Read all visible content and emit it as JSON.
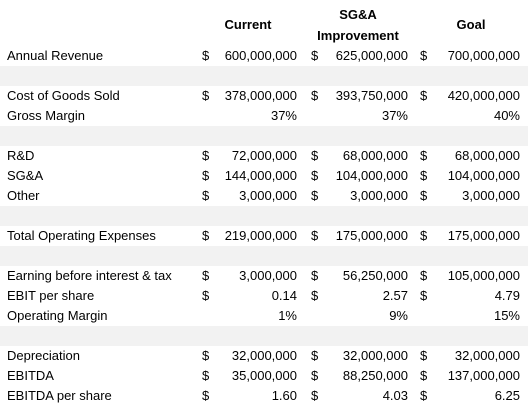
{
  "header": [
    "Current",
    "SG&A Improvement",
    "Goal"
  ],
  "groups": [
    [
      {
        "label": "Annual Revenue",
        "cells": [
          {
            "currency": "$",
            "value": "600,000,000"
          },
          {
            "currency": "$",
            "value": "625,000,000"
          },
          {
            "currency": "$",
            "value": "700,000,000"
          }
        ]
      }
    ],
    [
      {
        "label": "Cost of Goods Sold",
        "cells": [
          {
            "currency": "$",
            "value": "378,000,000"
          },
          {
            "currency": "$",
            "value": "393,750,000"
          },
          {
            "currency": "$",
            "value": "420,000,000"
          }
        ]
      },
      {
        "label": "Gross Margin",
        "cells": [
          {
            "value": "37%"
          },
          {
            "value": "37%"
          },
          {
            "value": "40%"
          }
        ]
      }
    ],
    [
      {
        "label": "R&D",
        "cells": [
          {
            "currency": "$",
            "value": "72,000,000"
          },
          {
            "currency": "$",
            "value": "68,000,000"
          },
          {
            "currency": "$",
            "value": "68,000,000"
          }
        ]
      },
      {
        "label": "SG&A",
        "cells": [
          {
            "currency": "$",
            "value": "144,000,000"
          },
          {
            "currency": "$",
            "value": "104,000,000"
          },
          {
            "currency": "$",
            "value": "104,000,000"
          }
        ]
      },
      {
        "label": "Other",
        "cells": [
          {
            "currency": "$",
            "value": "3,000,000"
          },
          {
            "currency": "$",
            "value": "3,000,000"
          },
          {
            "currency": "$",
            "value": "3,000,000"
          }
        ]
      }
    ],
    [
      {
        "label": "Total Operating Expenses",
        "cells": [
          {
            "currency": "$",
            "value": "219,000,000"
          },
          {
            "currency": "$",
            "value": "175,000,000"
          },
          {
            "currency": "$",
            "value": "175,000,000"
          }
        ]
      }
    ],
    [
      {
        "label": "Earning before interest & tax",
        "cells": [
          {
            "currency": "$",
            "value": "3,000,000"
          },
          {
            "currency": "$",
            "value": "56,250,000"
          },
          {
            "currency": "$",
            "value": "105,000,000"
          }
        ]
      },
      {
        "label": "EBIT per share",
        "cells": [
          {
            "currency": "$",
            "value": "0.14"
          },
          {
            "currency": "$",
            "value": "2.57"
          },
          {
            "currency": "$",
            "value": "4.79"
          }
        ]
      },
      {
        "label": "Operating Margin",
        "cells": [
          {
            "value": "1%"
          },
          {
            "value": "9%"
          },
          {
            "value": "15%"
          }
        ]
      }
    ],
    [
      {
        "label": "Depreciation",
        "cells": [
          {
            "currency": "$",
            "value": "32,000,000"
          },
          {
            "currency": "$",
            "value": "32,000,000"
          },
          {
            "currency": "$",
            "value": "32,000,000"
          }
        ]
      },
      {
        "label": "EBITDA",
        "cells": [
          {
            "currency": "$",
            "value": "35,000,000"
          },
          {
            "currency": "$",
            "value": "88,250,000"
          },
          {
            "currency": "$",
            "value": "137,000,000"
          }
        ]
      },
      {
        "label": "EBITDA per share",
        "cells": [
          {
            "currency": "$",
            "value": "1.60"
          },
          {
            "currency": "$",
            "value": "4.03"
          },
          {
            "currency": "$",
            "value": "6.25"
          }
        ]
      }
    ]
  ]
}
